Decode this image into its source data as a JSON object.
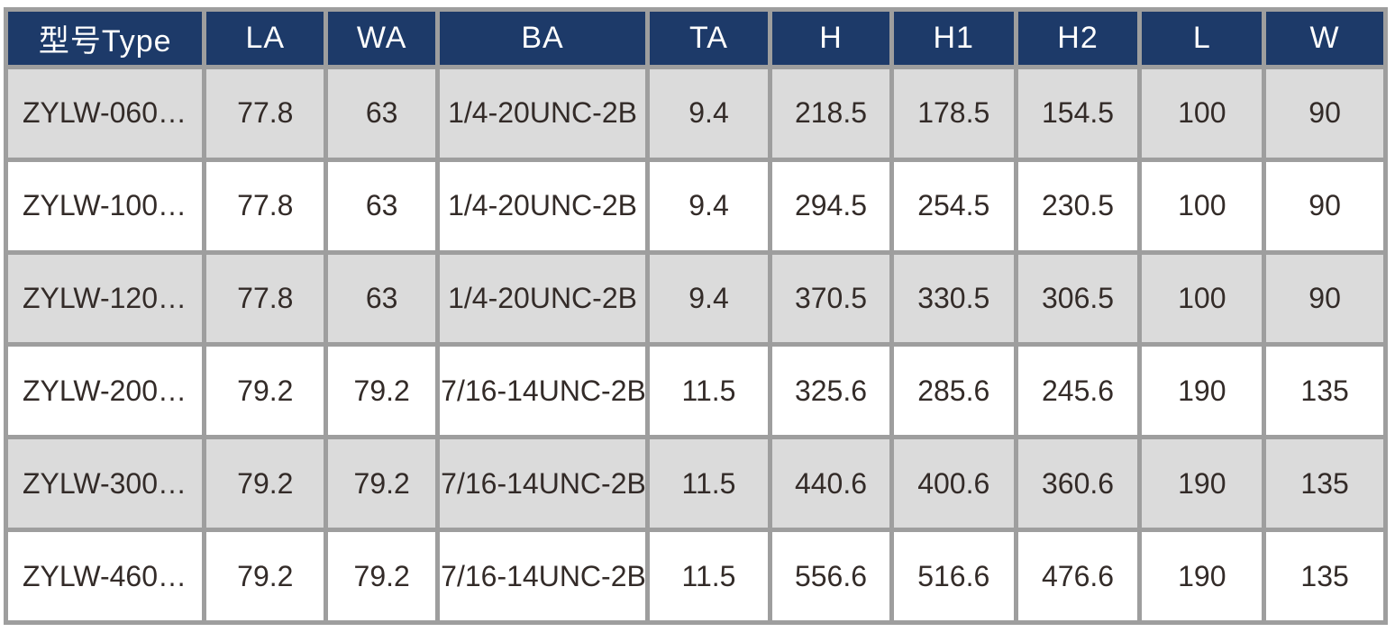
{
  "colors": {
    "header_bg": "#1d3a69",
    "header_text": "#ffffff",
    "row_alt_bg": "#dbdbdb",
    "row_bg": "#ffffff",
    "border": "#9e9e9e",
    "text": "#332b28",
    "page_bg": "#ffffff"
  },
  "table": {
    "columns": [
      {
        "key": "type",
        "label": "型号Type"
      },
      {
        "key": "la",
        "label": "LA"
      },
      {
        "key": "wa",
        "label": "WA"
      },
      {
        "key": "ba",
        "label": "BA"
      },
      {
        "key": "ta",
        "label": "TA"
      },
      {
        "key": "h",
        "label": "H"
      },
      {
        "key": "h1",
        "label": "H1"
      },
      {
        "key": "h2",
        "label": "H2"
      },
      {
        "key": "l",
        "label": "L"
      },
      {
        "key": "w",
        "label": "W"
      }
    ],
    "rows": [
      {
        "cells": [
          "ZYLW-060…",
          "77.8",
          "63",
          "1/4-20UNC-2B",
          "9.4",
          "218.5",
          "178.5",
          "154.5",
          "100",
          "90"
        ]
      },
      {
        "cells": [
          "ZYLW-100…",
          "77.8",
          "63",
          "1/4-20UNC-2B",
          "9.4",
          "294.5",
          "254.5",
          "230.5",
          "100",
          "90"
        ]
      },
      {
        "cells": [
          "ZYLW-120…",
          "77.8",
          "63",
          "1/4-20UNC-2B",
          "9.4",
          "370.5",
          "330.5",
          "306.5",
          "100",
          "90"
        ]
      },
      {
        "cells": [
          "ZYLW-200…",
          "79.2",
          "79.2",
          "7/16-14UNC-2B",
          "11.5",
          "325.6",
          "285.6",
          "245.6",
          "190",
          "135"
        ]
      },
      {
        "cells": [
          "ZYLW-300…",
          "79.2",
          "79.2",
          "7/16-14UNC-2B",
          "11.5",
          "440.6",
          "400.6",
          "360.6",
          "190",
          "135"
        ]
      },
      {
        "cells": [
          "ZYLW-460…",
          "79.2",
          "79.2",
          "7/16-14UNC-2B",
          "11.5",
          "556.6",
          "516.6",
          "476.6",
          "190",
          "135"
        ]
      }
    ]
  }
}
